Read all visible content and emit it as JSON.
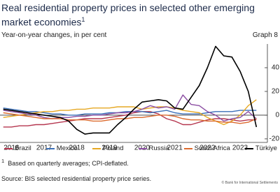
{
  "chart_data": {
    "type": "line",
    "title": "Real residential property prices in selected other emerging market economies",
    "title_marker": "1",
    "subtitle": "Year-on-year changes, in per cent",
    "graph_label": "Graph 8",
    "footnote_marker": "1",
    "footnote": "Based on quarterly averages; CPI-deflated.",
    "source": "Source: BIS selected residential property price series.",
    "copyright": "© Bank for International Settlements",
    "x": [
      2016.25,
      2016.5,
      2016.75,
      2017,
      2017.25,
      2017.5,
      2017.75,
      2018,
      2018.25,
      2018.5,
      2018.75,
      2019,
      2019.25,
      2019.5,
      2019.75,
      2020,
      2020.25,
      2020.5,
      2020.75,
      2021,
      2021.25,
      2021.5,
      2021.75,
      2022,
      2022.25,
      2022.5,
      2022.75,
      2023,
      2023.25,
      2023.5,
      2023.75,
      2024
    ],
    "xlim": [
      2016.15,
      2024.25
    ],
    "xticks": [
      {
        "value": 2016.5,
        "label": "2016"
      },
      {
        "value": 2017.5,
        "label": "2017"
      },
      {
        "value": 2018.5,
        "label": "2018"
      },
      {
        "value": 2019.5,
        "label": "2019"
      },
      {
        "value": 2020.5,
        "label": "2020"
      },
      {
        "value": 2021.5,
        "label": "2021"
      },
      {
        "value": 2022.5,
        "label": "2022"
      },
      {
        "value": 2023.5,
        "label": "2023"
      }
    ],
    "ylim": [
      -23,
      60
    ],
    "yticks": [
      -20,
      0,
      20,
      40
    ],
    "series": [
      {
        "name": "Brazil",
        "color": "#b5364f",
        "values": [
          -10,
          -10,
          -9,
          -9,
          -8,
          -8,
          -7,
          -6,
          -5,
          -4,
          -3,
          -3,
          -3,
          -2,
          -1,
          0,
          2,
          3,
          3,
          1,
          -3,
          -5,
          -8,
          -8,
          -6,
          -4,
          -3,
          -3,
          -4,
          -5,
          -4,
          -4
        ]
      },
      {
        "name": "Mexico",
        "color": "#3a6fb8",
        "values": [
          6,
          5,
          4,
          3,
          3,
          2,
          1,
          1,
          0,
          0,
          1,
          1,
          1,
          2,
          2,
          3,
          3,
          3,
          2,
          3,
          4,
          2,
          1,
          1,
          1,
          2,
          3,
          3,
          3,
          4,
          4,
          4
        ]
      },
      {
        "name": "Poland",
        "color": "#e6a823",
        "values": [
          -2,
          -1,
          0,
          1,
          2,
          3,
          3,
          4,
          4,
          5,
          5,
          6,
          6,
          6,
          7,
          7,
          7,
          5,
          6,
          7,
          7,
          6,
          4,
          3,
          2,
          -2,
          -5,
          -8,
          -5,
          0,
          8,
          13
        ]
      },
      {
        "name": "Russia",
        "color": "#8c4fa3",
        "values": [
          4,
          3,
          2,
          1,
          0,
          -2,
          -3,
          -2,
          -2,
          -1,
          -1,
          0,
          0,
          1,
          2,
          2,
          3,
          5,
          8,
          6,
          7,
          5,
          17,
          9,
          8,
          3,
          0,
          -5,
          -3,
          -2,
          3,
          -3
        ]
      },
      {
        "name": "South Africa",
        "color": "#dc6a2e",
        "values": [
          2,
          1,
          0,
          -1,
          -2,
          -3,
          -3,
          -3,
          -4,
          -4,
          -4,
          -5,
          -5,
          -4,
          -3,
          -3,
          -2,
          -2,
          -1,
          0,
          0,
          -1,
          -3,
          -4,
          -4,
          -5,
          -5,
          -6,
          -6,
          -7,
          -6,
          -3
        ]
      },
      {
        "name": "Türkiye",
        "color": "#000000",
        "values": [
          5,
          4,
          3,
          2,
          1,
          0,
          -1,
          -2,
          -5,
          -12,
          -16,
          -15,
          -15,
          -15,
          -8,
          -2,
          5,
          11,
          12,
          13,
          12,
          6,
          5,
          15,
          25,
          40,
          58,
          50,
          49,
          37,
          20,
          -10
        ]
      }
    ]
  }
}
